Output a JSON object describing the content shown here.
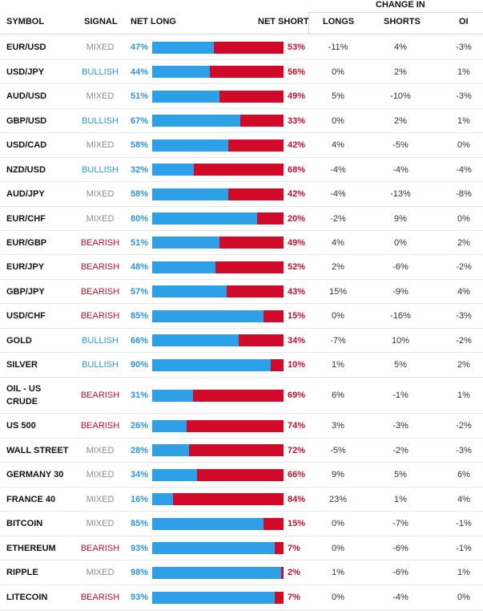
{
  "header": {
    "change_in": "CHANGE IN",
    "symbol": "SYMBOL",
    "signal": "SIGNAL",
    "net_long": "NET LONG",
    "net_short": "NET SHORT",
    "longs": "LONGS",
    "shorts": "SHORTS",
    "oi": "OI"
  },
  "colors": {
    "long_bar": "#2ea0e8",
    "short_bar": "#d10a2a",
    "bullish": "#2b95dd",
    "bearish": "#c90f2d",
    "mixed": "#8c8c8c"
  },
  "rows": [
    {
      "symbol": "EUR/USD",
      "signal": "MIXED",
      "net_long": "47%",
      "net_short": "53%",
      "longs": "-11%",
      "shorts": "4%",
      "oi": "-3%",
      "long_fraction": 0.47
    },
    {
      "symbol": "USD/JPY",
      "signal": "BULLISH",
      "net_long": "44%",
      "net_short": "56%",
      "longs": "0%",
      "shorts": "2%",
      "oi": "1%",
      "long_fraction": 0.44
    },
    {
      "symbol": "AUD/USD",
      "signal": "MIXED",
      "net_long": "51%",
      "net_short": "49%",
      "longs": "5%",
      "shorts": "-10%",
      "oi": "-3%",
      "long_fraction": 0.51
    },
    {
      "symbol": "GBP/USD",
      "signal": "BULLISH",
      "net_long": "67%",
      "net_short": "33%",
      "longs": "0%",
      "shorts": "2%",
      "oi": "1%",
      "long_fraction": 0.67
    },
    {
      "symbol": "USD/CAD",
      "signal": "MIXED",
      "net_long": "58%",
      "net_short": "42%",
      "longs": "4%",
      "shorts": "-5%",
      "oi": "0%",
      "long_fraction": 0.58
    },
    {
      "symbol": "NZD/USD",
      "signal": "BULLISH",
      "net_long": "32%",
      "net_short": "68%",
      "longs": "-4%",
      "shorts": "-4%",
      "oi": "-4%",
      "long_fraction": 0.32
    },
    {
      "symbol": "AUD/JPY",
      "signal": "MIXED",
      "net_long": "58%",
      "net_short": "42%",
      "longs": "-4%",
      "shorts": "-13%",
      "oi": "-8%",
      "long_fraction": 0.58
    },
    {
      "symbol": "EUR/CHF",
      "signal": "MIXED",
      "net_long": "80%",
      "net_short": "20%",
      "longs": "-2%",
      "shorts": "9%",
      "oi": "0%",
      "long_fraction": 0.8
    },
    {
      "symbol": "EUR/GBP",
      "signal": "BEARISH",
      "net_long": "51%",
      "net_short": "49%",
      "longs": "4%",
      "shorts": "0%",
      "oi": "2%",
      "long_fraction": 0.51
    },
    {
      "symbol": "EUR/JPY",
      "signal": "BEARISH",
      "net_long": "48%",
      "net_short": "52%",
      "longs": "2%",
      "shorts": "-6%",
      "oi": "-2%",
      "long_fraction": 0.48
    },
    {
      "symbol": "GBP/JPY",
      "signal": "BEARISH",
      "net_long": "57%",
      "net_short": "43%",
      "longs": "15%",
      "shorts": "-9%",
      "oi": "4%",
      "long_fraction": 0.57
    },
    {
      "symbol": "USD/CHF",
      "signal": "BEARISH",
      "net_long": "85%",
      "net_short": "15%",
      "longs": "0%",
      "shorts": "-16%",
      "oi": "-3%",
      "long_fraction": 0.85
    },
    {
      "symbol": "GOLD",
      "signal": "BULLISH",
      "net_long": "66%",
      "net_short": "34%",
      "longs": "-7%",
      "shorts": "10%",
      "oi": "-2%",
      "long_fraction": 0.66
    },
    {
      "symbol": "SILVER",
      "signal": "BULLISH",
      "net_long": "90%",
      "net_short": "10%",
      "longs": "1%",
      "shorts": "5%",
      "oi": "2%",
      "long_fraction": 0.9
    },
    {
      "symbol": "OIL - US CRUDE",
      "signal": "BEARISH",
      "net_long": "31%",
      "net_short": "69%",
      "longs": "6%",
      "shorts": "-1%",
      "oi": "1%",
      "long_fraction": 0.31
    },
    {
      "symbol": "US 500",
      "signal": "BEARISH",
      "net_long": "26%",
      "net_short": "74%",
      "longs": "3%",
      "shorts": "-3%",
      "oi": "-2%",
      "long_fraction": 0.26
    },
    {
      "symbol": "WALL STREET",
      "signal": "MIXED",
      "net_long": "28%",
      "net_short": "72%",
      "longs": "-5%",
      "shorts": "-2%",
      "oi": "-3%",
      "long_fraction": 0.28
    },
    {
      "symbol": "GERMANY 30",
      "signal": "MIXED",
      "net_long": "34%",
      "net_short": "66%",
      "longs": "9%",
      "shorts": "5%",
      "oi": "6%",
      "long_fraction": 0.34
    },
    {
      "symbol": "FRANCE 40",
      "signal": "MIXED",
      "net_long": "16%",
      "net_short": "84%",
      "longs": "23%",
      "shorts": "1%",
      "oi": "4%",
      "long_fraction": 0.16
    },
    {
      "symbol": "BITCOIN",
      "signal": "MIXED",
      "net_long": "85%",
      "net_short": "15%",
      "longs": "0%",
      "shorts": "-7%",
      "oi": "-1%",
      "long_fraction": 0.85
    },
    {
      "symbol": "ETHEREUM",
      "signal": "BEARISH",
      "net_long": "93%",
      "net_short": "7%",
      "longs": "0%",
      "shorts": "-6%",
      "oi": "-1%",
      "long_fraction": 0.93
    },
    {
      "symbol": "RIPPLE",
      "signal": "MIXED",
      "net_long": "98%",
      "net_short": "2%",
      "longs": "1%",
      "shorts": "-6%",
      "oi": "1%",
      "long_fraction": 0.98
    },
    {
      "symbol": "LITECOIN",
      "signal": "BEARISH",
      "net_long": "93%",
      "net_short": "7%",
      "longs": "0%",
      "shorts": "-4%",
      "oi": "0%",
      "long_fraction": 0.93
    }
  ]
}
